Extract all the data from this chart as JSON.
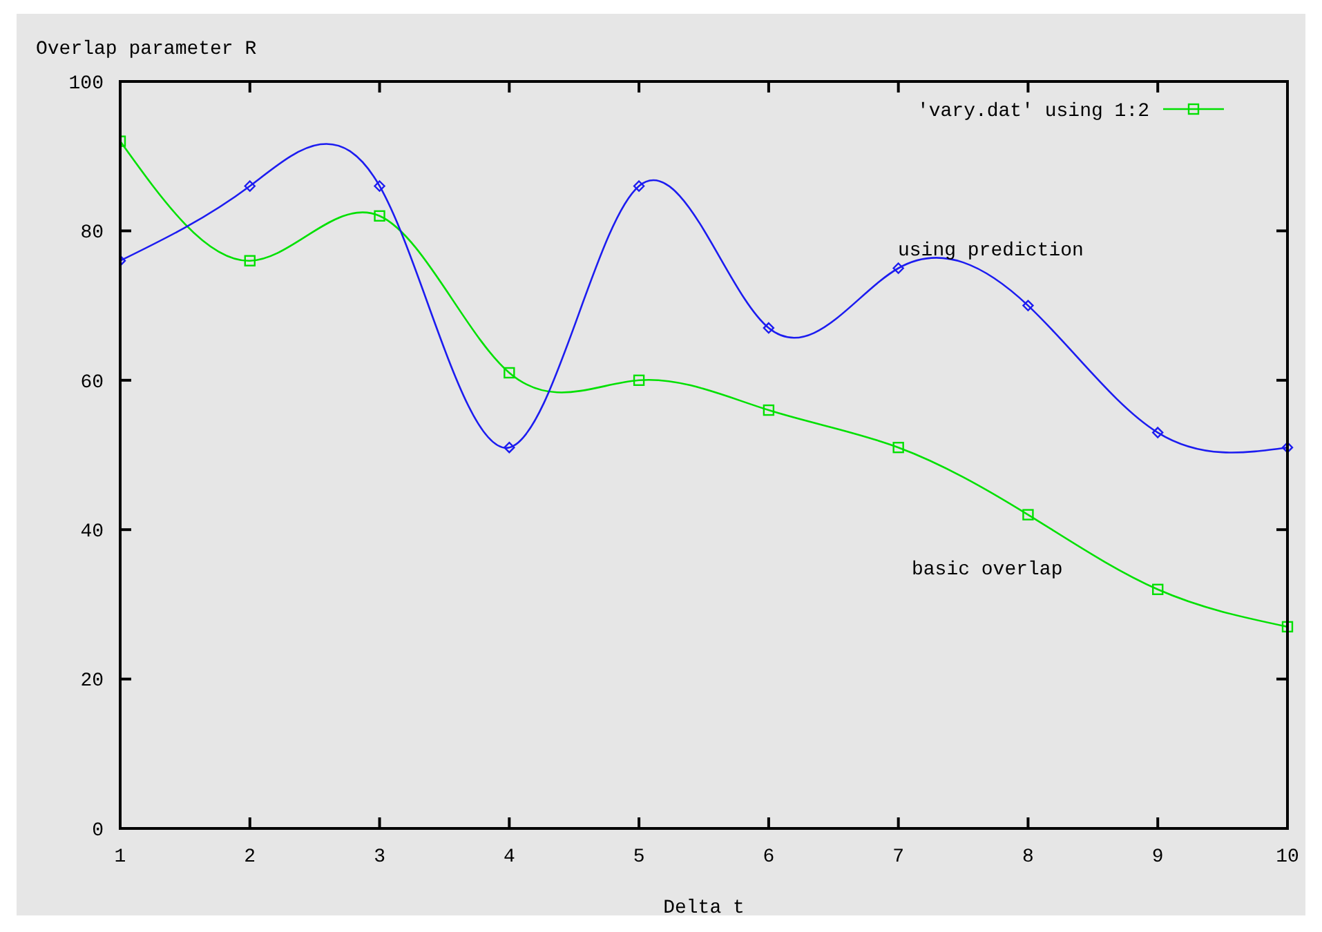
{
  "chart_data": {
    "type": "line",
    "xlabel": "Delta t",
    "ylabel": "Overlap parameter R",
    "x": [
      1,
      2,
      3,
      4,
      5,
      6,
      7,
      8,
      9,
      10
    ],
    "series": [
      {
        "name": "'vary.dat' using 1:2",
        "color": "#00e000",
        "marker": "square",
        "values": [
          92,
          76,
          82,
          61,
          60,
          56,
          51,
          42,
          32,
          27
        ]
      },
      {
        "color": "#1c1cf0",
        "marker": "diamond",
        "values": [
          76,
          86,
          86,
          51,
          86,
          67,
          75,
          70,
          53,
          51
        ]
      }
    ],
    "xlim": [
      1,
      10
    ],
    "xticks": [
      1,
      2,
      3,
      4,
      5,
      6,
      7,
      8,
      9,
      10
    ],
    "ylim": [
      0,
      100
    ],
    "yticks": [
      0,
      20,
      40,
      60,
      80,
      100
    ],
    "annotations": [
      "using prediction",
      "basic overlap"
    ],
    "legend": "top right",
    "grid": false,
    "line_style": "solid"
  }
}
